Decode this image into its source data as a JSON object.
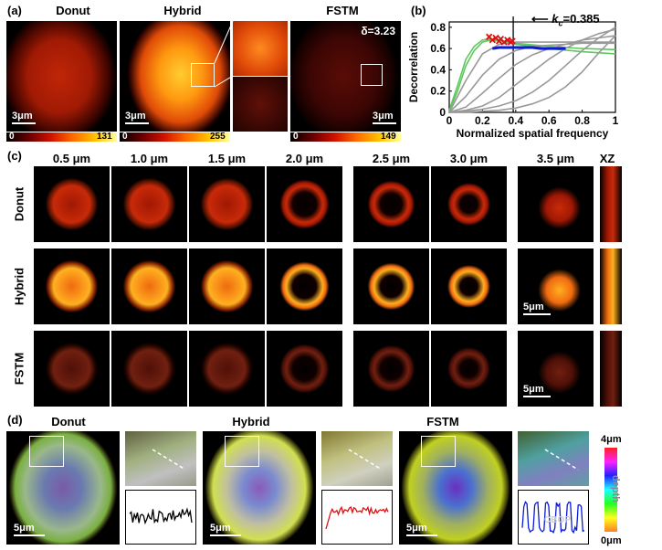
{
  "panel_a": {
    "label": "(a)",
    "titles": [
      "Donut",
      "Hybrid",
      "FSTM"
    ],
    "delta": "δ=3.23",
    "scalebar": "3μm",
    "colorbars": [
      {
        "min": "0",
        "max": "131"
      },
      {
        "min": "0",
        "max": "255"
      },
      {
        "min": "0",
        "max": "149"
      }
    ]
  },
  "panel_b": {
    "label": "(b)",
    "kc_label": "k",
    "kc_sub": "c",
    "kc_value": "=0.385",
    "chart_data": {
      "type": "line",
      "xlabel": "Normalized spatial frequency",
      "ylabel": "Decorrelation",
      "xlim": [
        0,
        1
      ],
      "ylim": [
        0,
        0.85
      ],
      "xticks": [
        "0",
        "0.2",
        "0.4",
        "0.6",
        "0.8",
        "1"
      ],
      "yticks": [
        "0",
        "0.2",
        "0.4",
        "0.6",
        "0.8"
      ],
      "cutoff_x": 0.385,
      "series": [
        {
          "color": "#5ec85e",
          "x": [
            0,
            0.05,
            0.1,
            0.15,
            0.2,
            0.25,
            0.3,
            0.4,
            0.6,
            0.8,
            1.0
          ],
          "y": [
            0.02,
            0.25,
            0.5,
            0.62,
            0.68,
            0.69,
            0.68,
            0.64,
            0.6,
            0.57,
            0.55
          ]
        },
        {
          "color": "#5ec85e",
          "x": [
            0,
            0.05,
            0.1,
            0.15,
            0.2,
            0.25,
            0.3,
            0.4,
            0.6,
            0.8,
            1.0
          ],
          "y": [
            0.01,
            0.2,
            0.44,
            0.58,
            0.66,
            0.68,
            0.67,
            0.65,
            0.62,
            0.6,
            0.59
          ]
        },
        {
          "color": "#999999",
          "x": [
            0,
            0.1,
            0.2,
            0.3,
            0.4,
            0.5,
            0.6,
            0.7,
            0.8,
            0.9,
            1.0
          ],
          "y": [
            0.0,
            0.3,
            0.55,
            0.64,
            0.66,
            0.66,
            0.66,
            0.66,
            0.66,
            0.66,
            0.66
          ]
        },
        {
          "color": "#999999",
          "x": [
            0,
            0.1,
            0.2,
            0.3,
            0.4,
            0.5,
            0.6,
            0.7,
            0.8,
            0.9,
            1.0
          ],
          "y": [
            0.0,
            0.15,
            0.35,
            0.5,
            0.58,
            0.62,
            0.63,
            0.64,
            0.65,
            0.65,
            0.65
          ]
        },
        {
          "color": "#999999",
          "x": [
            0,
            0.1,
            0.2,
            0.3,
            0.4,
            0.5,
            0.6,
            0.7,
            0.8,
            0.9,
            1.0
          ],
          "y": [
            0.0,
            0.05,
            0.18,
            0.32,
            0.45,
            0.54,
            0.6,
            0.64,
            0.68,
            0.7,
            0.72
          ]
        },
        {
          "color": "#999999",
          "x": [
            0,
            0.1,
            0.2,
            0.3,
            0.4,
            0.5,
            0.6,
            0.7,
            0.8,
            0.9,
            1.0
          ],
          "y": [
            0.0,
            0.02,
            0.06,
            0.14,
            0.26,
            0.38,
            0.5,
            0.6,
            0.68,
            0.74,
            0.78
          ]
        },
        {
          "color": "#999999",
          "x": [
            0,
            0.1,
            0.2,
            0.3,
            0.4,
            0.5,
            0.6,
            0.7,
            0.8,
            0.9,
            1.0
          ],
          "y": [
            0.0,
            0.01,
            0.03,
            0.06,
            0.11,
            0.19,
            0.3,
            0.44,
            0.58,
            0.7,
            0.8
          ]
        },
        {
          "color": "#999999",
          "x": [
            0,
            0.1,
            0.2,
            0.3,
            0.4,
            0.5,
            0.6,
            0.7,
            0.8,
            0.9,
            1.0
          ],
          "y": [
            0.0,
            0.0,
            0.01,
            0.02,
            0.04,
            0.08,
            0.14,
            0.24,
            0.38,
            0.56,
            0.72
          ]
        },
        {
          "color": "#0a1ad6",
          "x": [
            0.26,
            0.3,
            0.35,
            0.4,
            0.45,
            0.5,
            0.55,
            0.6,
            0.65,
            0.7
          ],
          "y": [
            0.6,
            0.61,
            0.61,
            0.61,
            0.61,
            0.61,
            0.6,
            0.6,
            0.6,
            0.6
          ]
        }
      ],
      "markers": {
        "color": "#e01010",
        "x": [
          0.24,
          0.26,
          0.28,
          0.3,
          0.31,
          0.33,
          0.35,
          0.37,
          0.38
        ],
        "y": [
          0.71,
          0.68,
          0.7,
          0.67,
          0.69,
          0.66,
          0.68,
          0.66,
          0.67
        ]
      }
    }
  },
  "panel_c": {
    "label": "(c)",
    "depths": [
      "0.5 μm",
      "1.0 μm",
      "1.5 μm",
      "2.0 μm",
      "2.5 μm",
      "3.0 μm",
      "3.5 μm",
      "XZ"
    ],
    "rows": [
      "Donut",
      "Hybrid",
      "FSTM"
    ],
    "scalebar": "5μm"
  },
  "panel_d": {
    "label": "(d)",
    "titles": [
      "Donut",
      "Hybrid",
      "FSTM"
    ],
    "scalebar": "5μm",
    "depth_max": "4μm",
    "depth_min": "0μm",
    "depth_label": "depth",
    "watermark": "CBOP",
    "profiles": [
      {
        "color": "#000000"
      },
      {
        "color": "#e01010"
      },
      {
        "color": "#0a1ad6"
      }
    ]
  }
}
